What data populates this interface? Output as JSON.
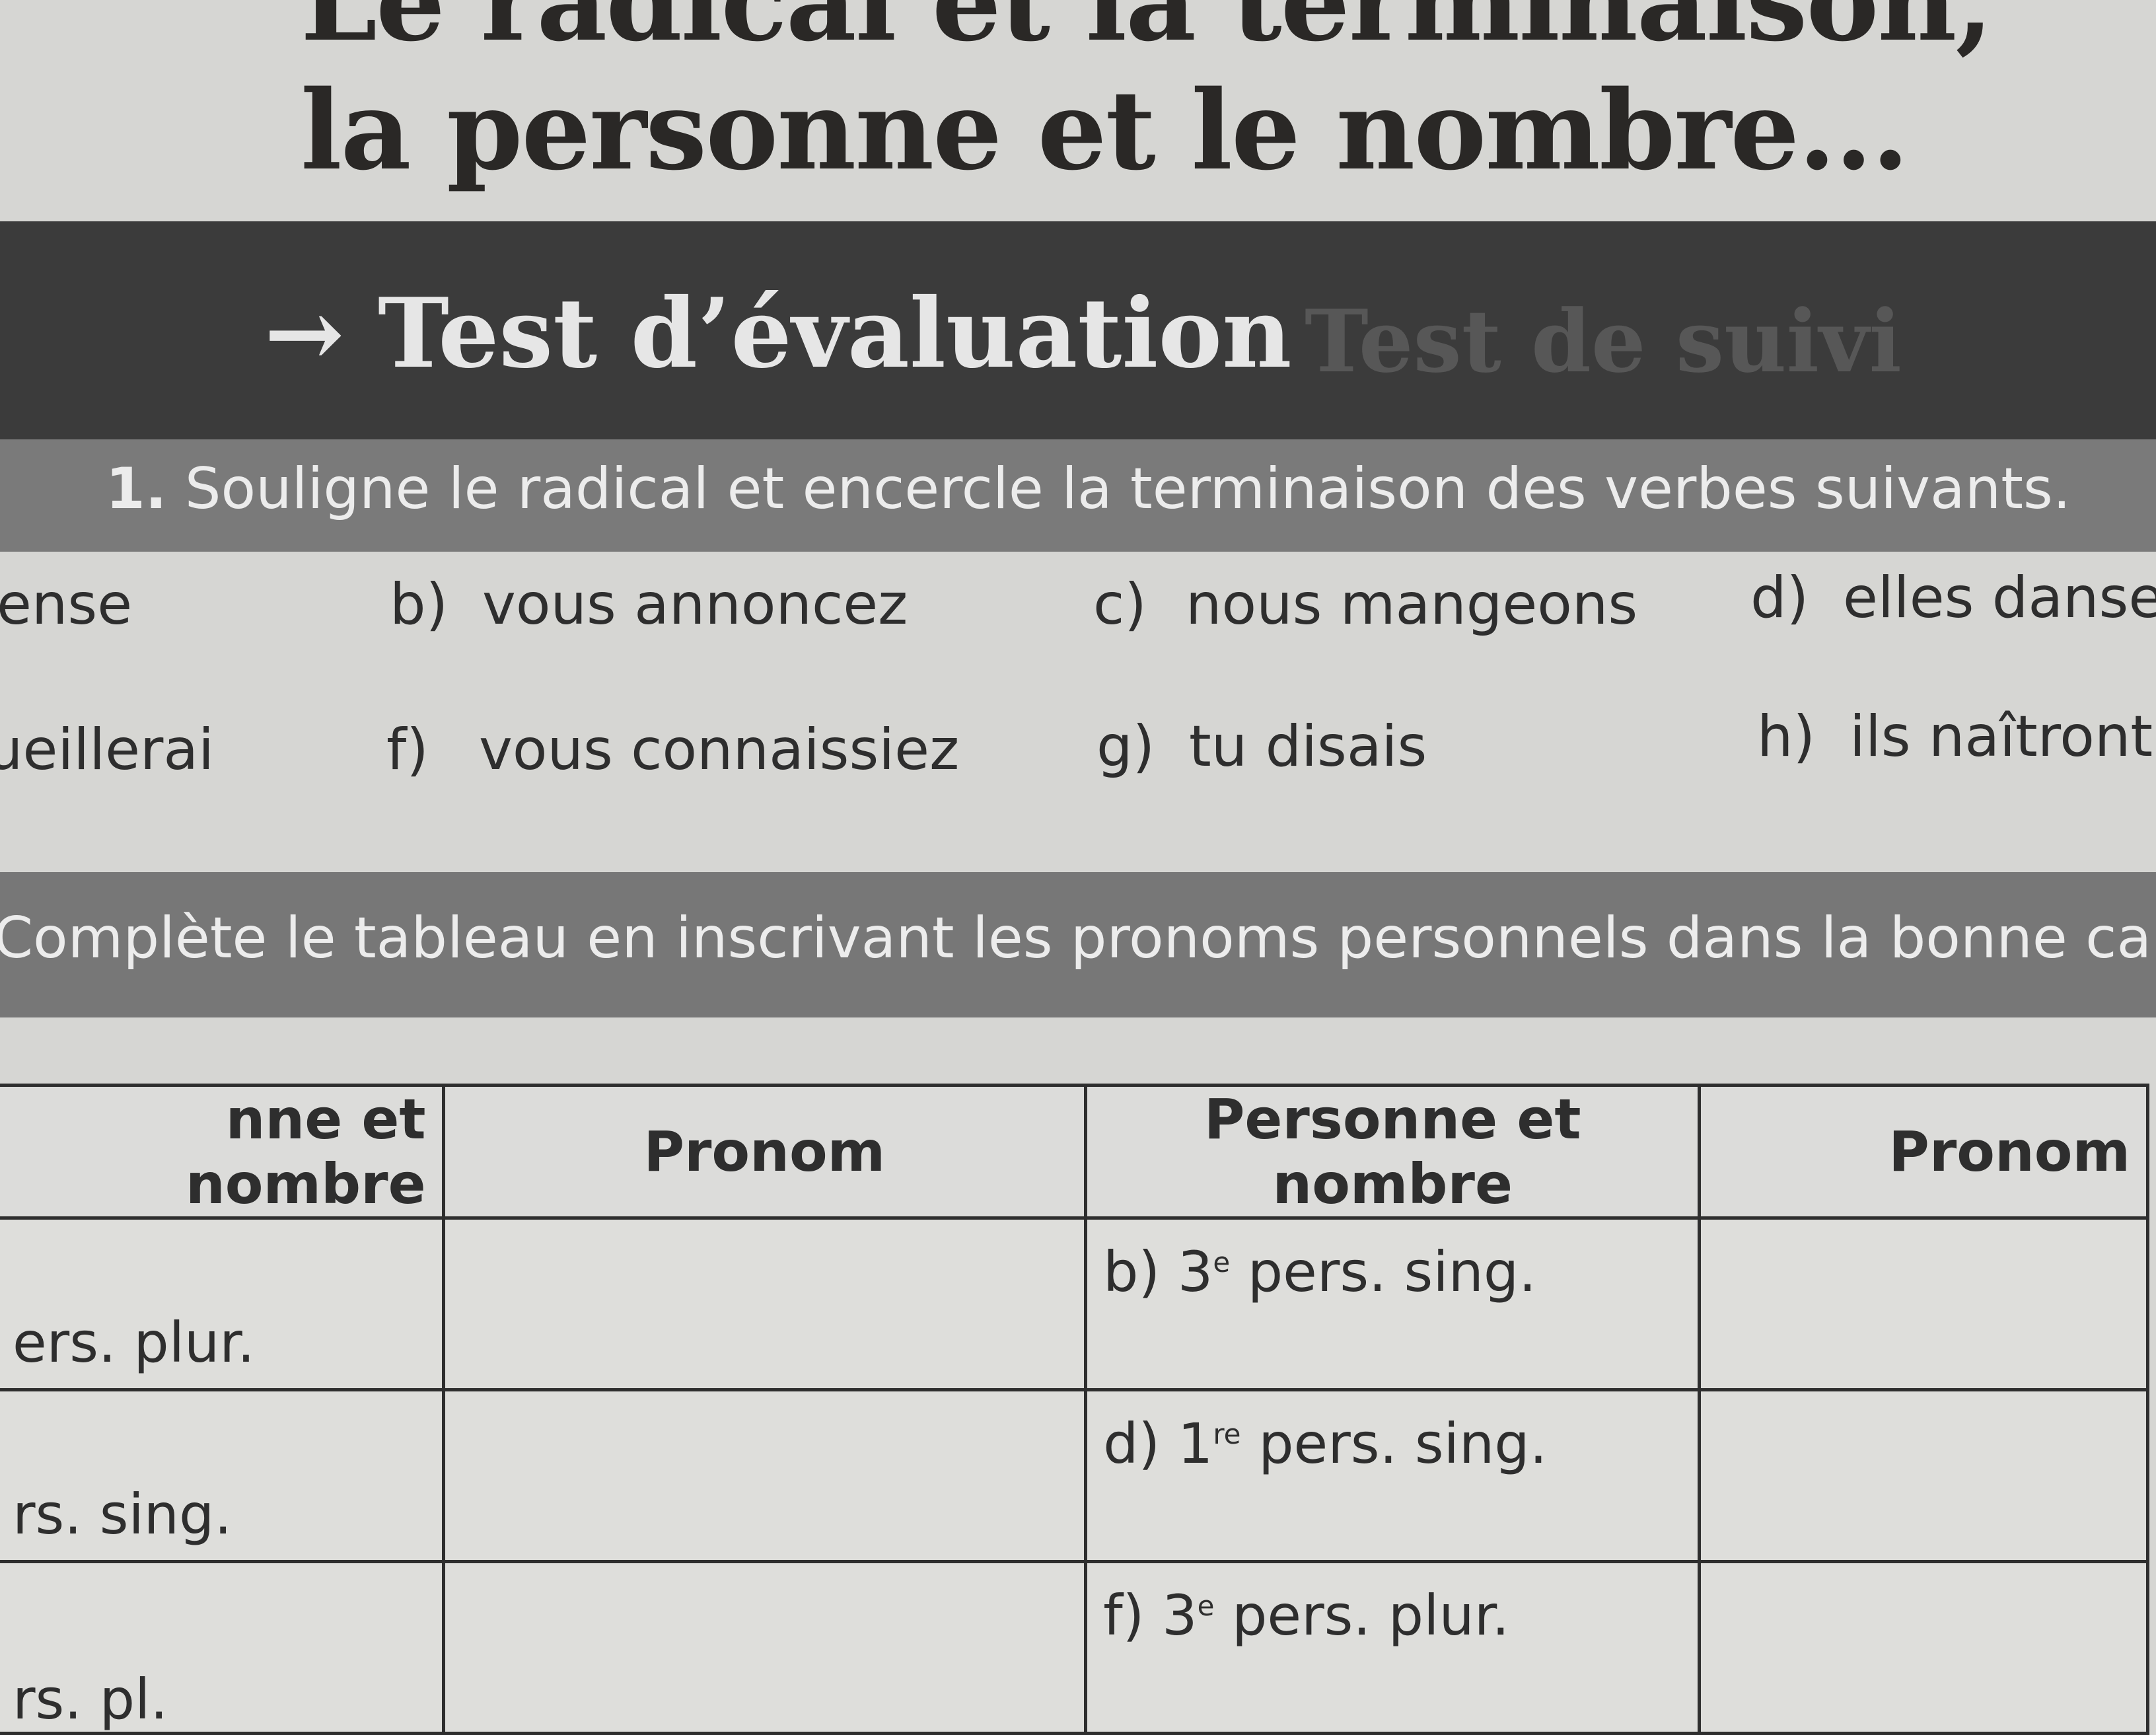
{
  "title": {
    "line1": "Le radical et la terminaison,",
    "line2": "la personne et le nombre..."
  },
  "tabs": [
    {
      "label": "Test d’évaluation",
      "active": true,
      "icon": "arrow-right-icon"
    },
    {
      "label": "Test de suivi",
      "active": false
    }
  ],
  "exercise1": {
    "number": "1.",
    "instruction": "Souligne le radical et encercle la terminaison des verbes suivants.",
    "items": [
      {
        "letter": "",
        "text": "ense"
      },
      {
        "letter": "b)",
        "text": "vous annoncez"
      },
      {
        "letter": "c)",
        "text": "nous mangeons"
      },
      {
        "letter": "d)",
        "text": "elles dansen"
      },
      {
        "letter": "",
        "text": "ueillerai"
      },
      {
        "letter": "f)",
        "text": "vous connaissiez"
      },
      {
        "letter": "g)",
        "text": "tu disais"
      },
      {
        "letter": "h)",
        "text": "ils naîtront"
      }
    ]
  },
  "exercise2": {
    "instruction": "Complète le tableau en inscrivant les pronoms personnels dans la bonne ca",
    "headers": [
      "nne et nombre",
      "Pronom",
      "Personne et nombre",
      "Pronom"
    ],
    "rows": [
      {
        "left": "ers. plur.",
        "right_letter": "b) 3",
        "right_sup": "e",
        "right_rest": " pers. sing."
      },
      {
        "left": "rs. sing.",
        "right_letter": "d) 1",
        "right_sup": "re",
        "right_rest": " pers. sing."
      },
      {
        "left": "rs. pl.",
        "right_letter": "f) 3",
        "right_sup": "e",
        "right_rest": " pers. plur."
      }
    ]
  },
  "colors": {
    "paper": "#d6d6d3",
    "dark_band": "#3b3b3b",
    "gray_band": "#7a7a7a"
  }
}
